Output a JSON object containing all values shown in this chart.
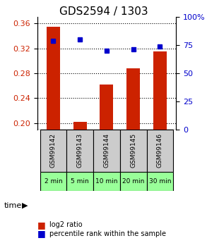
{
  "title": "GDS2594 / 1303",
  "samples": [
    "GSM99142",
    "GSM99143",
    "GSM99144",
    "GSM99145",
    "GSM99146"
  ],
  "time_labels": [
    "2 min",
    "5 min",
    "10 min",
    "20 min",
    "30 min"
  ],
  "log2_ratio": [
    0.354,
    0.202,
    0.262,
    0.288,
    0.315
  ],
  "percentile_rank": [
    79,
    80,
    70,
    71,
    74
  ],
  "ylim_left": [
    0.19,
    0.37
  ],
  "ylim_right": [
    0,
    100
  ],
  "yticks_left": [
    0.2,
    0.24,
    0.28,
    0.32,
    0.36
  ],
  "yticks_right": [
    0,
    25,
    50,
    75,
    100
  ],
  "bar_color": "#cc2200",
  "dot_color": "#0000cc",
  "bar_width": 0.5,
  "grid_color": "#000000",
  "sample_bg_color": "#cccccc",
  "time_bg_color": "#99ff99",
  "legend_bar_label": "log2 ratio",
  "legend_dot_label": "percentile rank within the sample",
  "title_fontsize": 11,
  "axis_fontsize": 8,
  "tick_fontsize": 8
}
